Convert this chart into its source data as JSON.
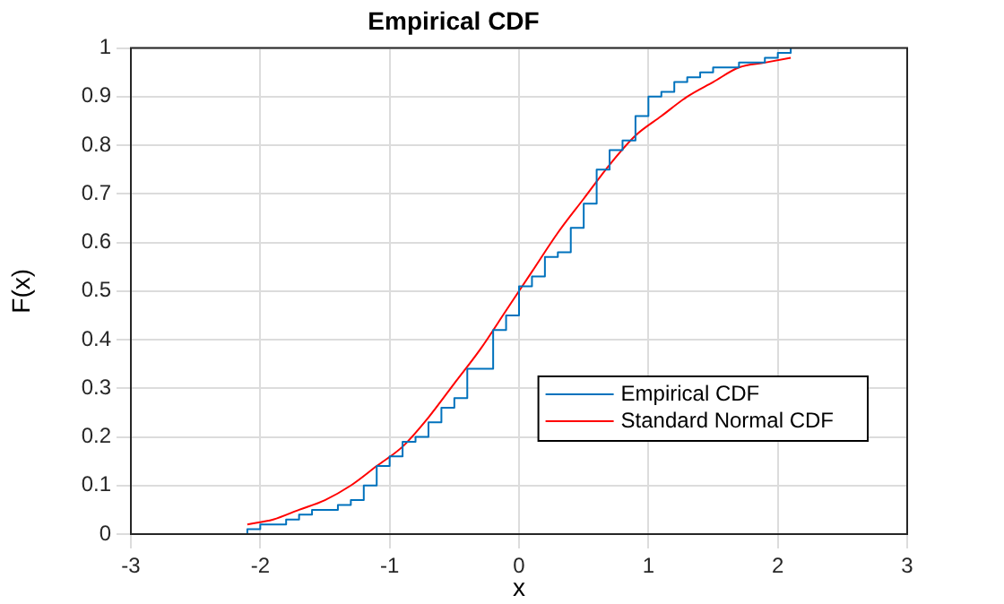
{
  "chart_data": {
    "type": "line",
    "title": "Empirical CDF",
    "xlabel": "x",
    "ylabel": "F(x)",
    "xlim": [
      -3,
      3
    ],
    "xticks": [
      -3,
      -2,
      -1,
      0,
      1,
      2,
      3
    ],
    "ylim": [
      0,
      1
    ],
    "yticks": [
      0,
      0.1,
      0.2,
      0.3,
      0.4,
      0.5,
      0.6,
      0.7,
      0.8,
      0.9,
      1
    ],
    "grid": true,
    "legend": "bottom right",
    "series": [
      {
        "name": "Empirical CDF",
        "type": "step",
        "color": "#0072bd",
        "x": [
          -2.1,
          -2.1,
          -2.0,
          -1.9,
          -1.8,
          -1.7,
          -1.6,
          -1.5,
          -1.4,
          -1.3,
          -1.2,
          -1.1,
          -1.0,
          -0.9,
          -0.8,
          -0.7,
          -0.6,
          -0.5,
          -0.4,
          -0.3,
          -0.2,
          -0.1,
          0.0,
          0.1,
          0.2,
          0.3,
          0.4,
          0.5,
          0.6,
          0.7,
          0.8,
          0.9,
          1.0,
          1.1,
          1.2,
          1.3,
          1.4,
          1.5,
          1.6,
          1.7,
          1.8,
          1.9,
          2.0,
          2.1
        ],
        "values": [
          0,
          0.01,
          0.02,
          0.02,
          0.03,
          0.04,
          0.05,
          0.05,
          0.06,
          0.07,
          0.1,
          0.14,
          0.16,
          0.19,
          0.2,
          0.23,
          0.26,
          0.28,
          0.34,
          0.34,
          0.42,
          0.45,
          0.51,
          0.53,
          0.57,
          0.58,
          0.63,
          0.68,
          0.75,
          0.79,
          0.81,
          0.86,
          0.9,
          0.91,
          0.93,
          0.94,
          0.95,
          0.96,
          0.96,
          0.97,
          0.97,
          0.98,
          0.99,
          1.0
        ]
      },
      {
        "name": "Standard Normal CDF",
        "type": "line",
        "color": "#ff0000",
        "x": [
          -2.1,
          -1.9,
          -1.7,
          -1.5,
          -1.3,
          -1.1,
          -0.9,
          -0.7,
          -0.5,
          -0.3,
          -0.1,
          0.1,
          0.3,
          0.5,
          0.7,
          0.9,
          1.1,
          1.3,
          1.5,
          1.7,
          1.9,
          2.1
        ],
        "values": [
          0.02,
          0.03,
          0.05,
          0.07,
          0.1,
          0.14,
          0.18,
          0.24,
          0.31,
          0.38,
          0.46,
          0.54,
          0.62,
          0.69,
          0.76,
          0.82,
          0.86,
          0.9,
          0.93,
          0.96,
          0.97,
          0.98
        ]
      }
    ]
  }
}
